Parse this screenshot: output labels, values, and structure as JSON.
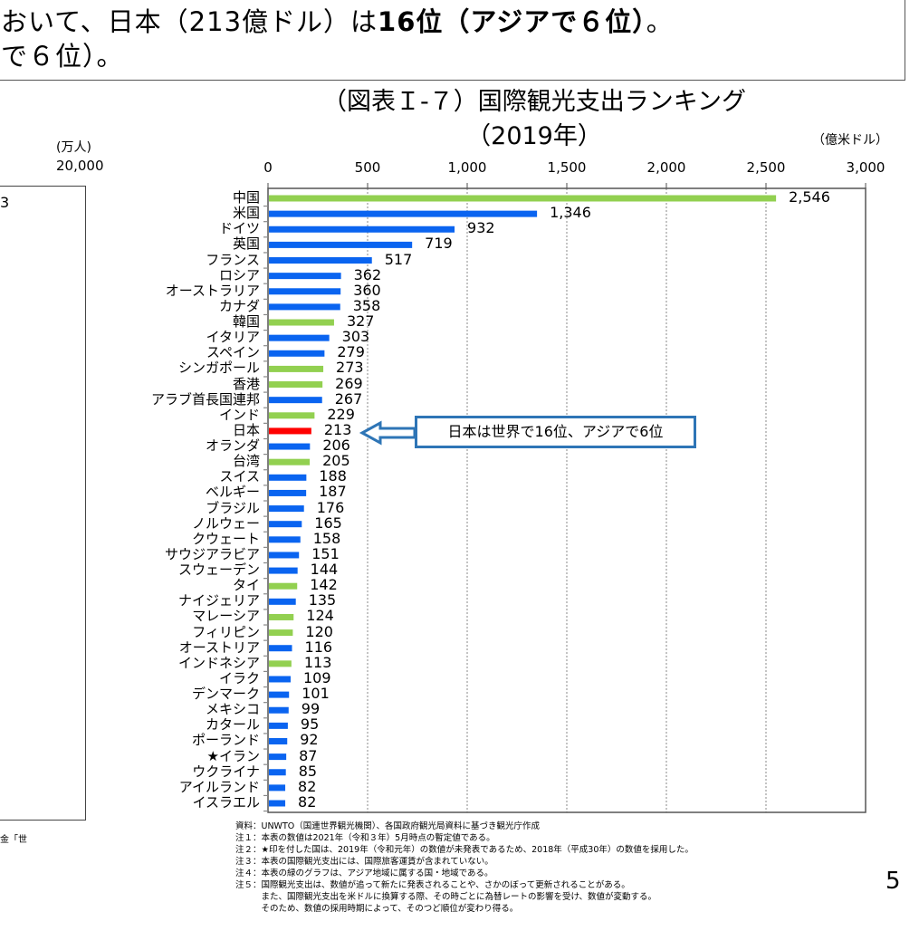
{
  "intro_text": {
    "line1_pre": "おいて、日本（213億ドル）は",
    "line1_bold": "16位（アジアで６位）",
    "line1_post": "。",
    "line2": "で６位）。"
  },
  "left_chart_fragment": {
    "unit": "(万人)",
    "axis_max_label": "20,000",
    "partial_value": "3",
    "partial_note": "金「世"
  },
  "chart_data": {
    "type": "bar",
    "orientation": "horizontal",
    "title": "（図表Ｉ-７）国際観光支出ランキング",
    "subtitle": "（2019年）",
    "unit": "（億米ドル）",
    "xlim": [
      0,
      3000
    ],
    "xticks": [
      "0",
      "500",
      "1,000",
      "1,500",
      "2,000",
      "2,500",
      "3,000"
    ],
    "grid": "vertical dotted",
    "colors": {
      "asia": "#92d050",
      "other": "#0a64f0",
      "japan": "#ff0000"
    },
    "categories": [
      "中国",
      "米国",
      "ドイツ",
      "英国",
      "フランス",
      "ロシア",
      "オーストラリア",
      "カナダ",
      "韓国",
      "イタリア",
      "スペイン",
      "シンガポール",
      "香港",
      "アラブ首長国連邦",
      "インド",
      "日本",
      "オランダ",
      "台湾",
      "スイス",
      "ベルギー",
      "ブラジル",
      "ノルウェー",
      "クウェート",
      "サウジアラビア",
      "スウェーデン",
      "タイ",
      "ナイジェリア",
      "マレーシア",
      "フィリピン",
      "オーストリア",
      "インドネシア",
      "イラク",
      "デンマーク",
      "メキシコ",
      "カタール",
      "ポーランド",
      "★イラン",
      "ウクライナ",
      "アイルランド",
      "イスラエル"
    ],
    "values": [
      2546,
      1346,
      932,
      719,
      517,
      362,
      360,
      358,
      327,
      303,
      279,
      273,
      269,
      267,
      229,
      213,
      206,
      205,
      188,
      187,
      176,
      165,
      158,
      151,
      144,
      142,
      135,
      124,
      120,
      116,
      113,
      109,
      101,
      99,
      95,
      92,
      87,
      85,
      82,
      82
    ],
    "value_labels": [
      "2,546",
      "1,346",
      "932",
      "719",
      "517",
      "362",
      "360",
      "358",
      "327",
      "303",
      "279",
      "273",
      "269",
      "267",
      "229",
      "213",
      "206",
      "205",
      "188",
      "187",
      "176",
      "165",
      "158",
      "151",
      "144",
      "142",
      "135",
      "124",
      "120",
      "116",
      "113",
      "109",
      "101",
      "99",
      "95",
      "92",
      "87",
      "85",
      "82",
      "82"
    ],
    "groups": [
      "asia",
      "other",
      "other",
      "other",
      "other",
      "other",
      "other",
      "other",
      "asia",
      "other",
      "other",
      "asia",
      "asia",
      "other",
      "asia",
      "japan",
      "other",
      "asia",
      "other",
      "other",
      "other",
      "other",
      "other",
      "other",
      "other",
      "asia",
      "other",
      "asia",
      "asia",
      "other",
      "asia",
      "other",
      "other",
      "other",
      "other",
      "other",
      "other",
      "other",
      "other",
      "other"
    ],
    "annotation": "日本は世界で16位、アジアで6位"
  },
  "notes": [
    "資料：UNWTO（国連世界観光機関）、各国政府観光局資料に基づき観光庁作成",
    "注１：本表の数値は2021年（令和３年）5月時点の暫定値である。",
    "注２：★印を付した国は、2019年（令和元年）の数値が未発表であるため、2018年（平成30年）の数値を採用した。",
    "注３：本表の国際観光支出には、国際旅客運賃が含まれていない。",
    "注４：本表の緑のグラフは、アジア地域に属する国・地域である。",
    "注５：国際観光支出は、数値が追って新たに発表されることや、さかのぼって更新されることがある。",
    "　　　また、国際観光支出を米ドルに換算する際、その時ごとに為替レートの影響を受け、数値が変動する。",
    "　　　そのため、数値の採用時期によって、そのつど順位が変わり得る。"
  ],
  "page_number": "5"
}
